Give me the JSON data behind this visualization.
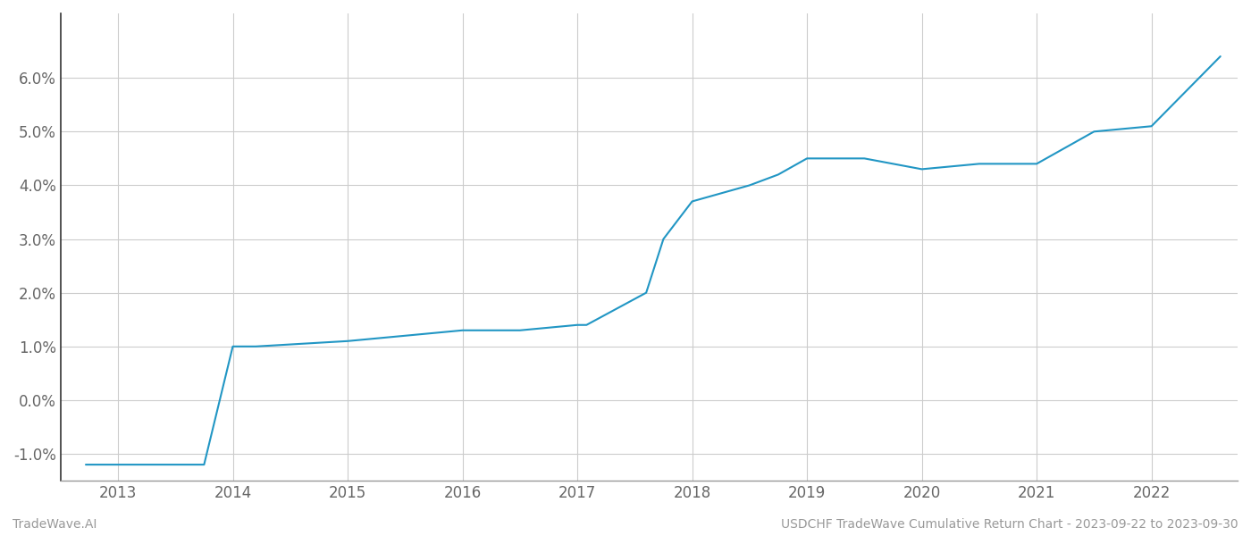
{
  "x_years": [
    2012.72,
    2013.75,
    2014.0,
    2014.2,
    2015.0,
    2015.5,
    2016.0,
    2016.5,
    2017.0,
    2017.08,
    2017.6,
    2017.75,
    2018.0,
    2018.5,
    2018.75,
    2019.0,
    2019.5,
    2020.0,
    2020.5,
    2021.0,
    2021.5,
    2022.0,
    2022.6
  ],
  "y_values": [
    -0.012,
    -0.012,
    0.01,
    0.01,
    0.011,
    0.012,
    0.013,
    0.013,
    0.014,
    0.014,
    0.02,
    0.03,
    0.037,
    0.04,
    0.042,
    0.045,
    0.045,
    0.043,
    0.044,
    0.044,
    0.05,
    0.051,
    0.064
  ],
  "line_color": "#2196c4",
  "background_color": "#ffffff",
  "grid_color": "#cccccc",
  "left_spine_color": "#333333",
  "bottom_spine_color": "#999999",
  "tick_label_color": "#666666",
  "footer_color": "#999999",
  "footer_left": "TradeWave.AI",
  "footer_right": "USDCHF TradeWave Cumulative Return Chart - 2023-09-22 to 2023-09-30",
  "xlim": [
    2012.5,
    2022.75
  ],
  "ylim": [
    -0.015,
    0.072
  ],
  "yticks": [
    -0.01,
    0.0,
    0.01,
    0.02,
    0.03,
    0.04,
    0.05,
    0.06
  ],
  "xticks": [
    2013,
    2014,
    2015,
    2016,
    2017,
    2018,
    2019,
    2020,
    2021,
    2022
  ],
  "figsize": [
    14.0,
    6.0
  ],
  "dpi": 100
}
